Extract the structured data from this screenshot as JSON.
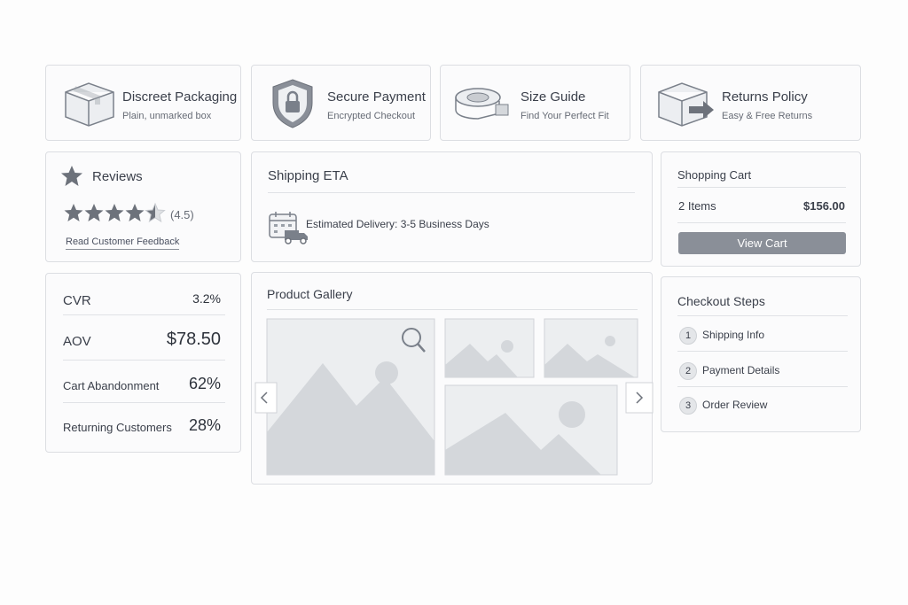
{
  "features": [
    {
      "title": "Discreet Packaging",
      "subtitle": "Plain, unmarked box"
    },
    {
      "title": "Secure Payment",
      "subtitle": "Encrypted Checkout"
    },
    {
      "title": "Size Guide",
      "subtitle": "Find Your Perfect Fit"
    },
    {
      "title": "Returns Policy",
      "subtitle": "Easy & Free Returns"
    }
  ],
  "reviews": {
    "title": "Reviews",
    "rating": 4.5,
    "rating_label": "(4.5)",
    "stars_max": 5,
    "link": "Read Customer Feedback"
  },
  "shipping": {
    "title": "Shipping ETA",
    "text": "Estimated Delivery: 3-5 Business Days"
  },
  "cart": {
    "title": "Shopping Cart",
    "items": "2 Items",
    "total": "$156.00",
    "button": "View Cart"
  },
  "metrics": {
    "rows": [
      [
        "CVR",
        "3.2%"
      ],
      [
        "AOV",
        "$78.50"
      ],
      [
        "Cart Abandonment",
        "62%"
      ],
      [
        "Returning Customers",
        "28%"
      ]
    ]
  },
  "gallery": {
    "title": "Product Gallery"
  },
  "checkout": {
    "title": "Checkout Steps",
    "steps": [
      [
        "1",
        "Shipping Info"
      ],
      [
        "2",
        "Payment Details"
      ],
      [
        "3",
        "Order Review"
      ]
    ]
  }
}
